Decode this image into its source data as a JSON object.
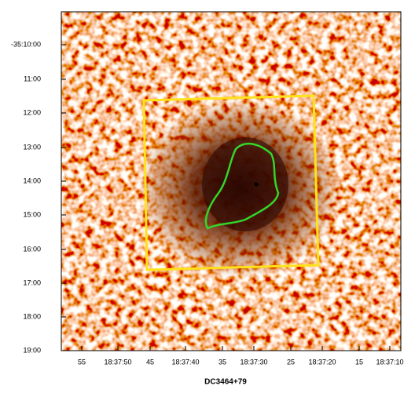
{
  "image": {
    "caption": "DC3464+79",
    "y_labels": [
      "-35:10:00",
      "11:00",
      "12:00",
      "13:00",
      "14:00",
      "15:00",
      "16:00",
      "17:00",
      "18:00",
      "19:00"
    ],
    "x_labels": [
      "55",
      "18:37:50",
      "45",
      "18:37:40",
      "35",
      "18:37:30",
      "25",
      "18:37:20",
      "15",
      "18:37:10"
    ]
  }
}
